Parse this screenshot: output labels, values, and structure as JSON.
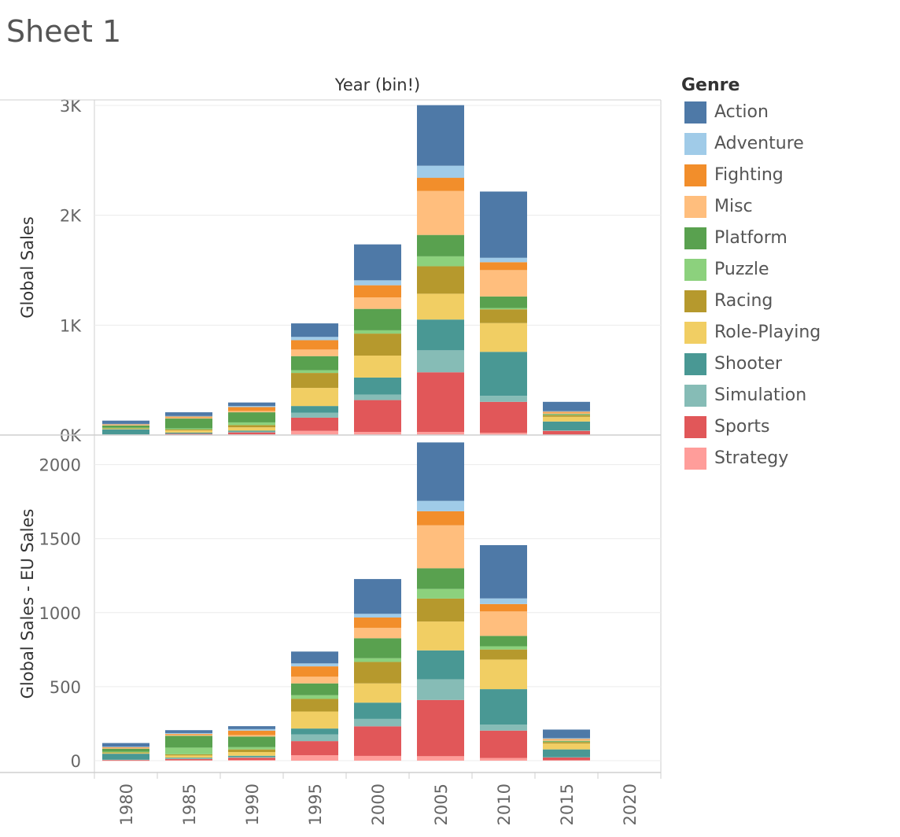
{
  "sheet": {
    "title": "Sheet 1"
  },
  "legend": {
    "title": "Genre",
    "items": [
      {
        "label": "Action",
        "color": "#4E79A7"
      },
      {
        "label": "Adventure",
        "color": "#A0CBE8"
      },
      {
        "label": "Fighting",
        "color": "#F28E2B"
      },
      {
        "label": "Misc",
        "color": "#FFBE7D"
      },
      {
        "label": "Platform",
        "color": "#59A14F"
      },
      {
        "label": "Puzzle",
        "color": "#8CD17D"
      },
      {
        "label": "Racing",
        "color": "#B6992D"
      },
      {
        "label": "Role-Playing",
        "color": "#F1CE63"
      },
      {
        "label": "Shooter",
        "color": "#499894"
      },
      {
        "label": "Simulation",
        "color": "#86BCB6"
      },
      {
        "label": "Sports",
        "color": "#E15759"
      },
      {
        "label": "Strategy",
        "color": "#FF9D9A"
      }
    ]
  },
  "chart_data": [
    {
      "type": "bar",
      "stacked": true,
      "xlabel": "Year (bin!)",
      "ylabel": "Global Sales",
      "ylim": [
        0,
        3050
      ],
      "yticks": [
        0,
        1000,
        2000,
        3000
      ],
      "ytick_labels": [
        "0K",
        "1K",
        "2K",
        "3K"
      ],
      "grid": true,
      "categories": [
        "1980",
        "1985",
        "1990",
        "1995",
        "2000",
        "2005",
        "2010",
        "2015",
        "2020"
      ],
      "series": [
        {
          "name": "Strategy",
          "values": [
            1,
            3,
            6,
            38,
            28,
            28,
            20,
            3,
            0
          ]
        },
        {
          "name": "Sports",
          "values": [
            4,
            8,
            18,
            120,
            290,
            543,
            282,
            35,
            0
          ]
        },
        {
          "name": "Simulation",
          "values": [
            2,
            3,
            6,
            46,
            50,
            200,
            55,
            5,
            0
          ]
        },
        {
          "name": "Shooter",
          "values": [
            45,
            8,
            10,
            60,
            155,
            280,
            400,
            80,
            0
          ]
        },
        {
          "name": "Role-Playing",
          "values": [
            4,
            20,
            30,
            165,
            200,
            235,
            262,
            43,
            0
          ]
        },
        {
          "name": "Racing",
          "values": [
            5,
            8,
            20,
            136,
            200,
            250,
            125,
            15,
            0
          ]
        },
        {
          "name": "Puzzle",
          "values": [
            6,
            10,
            25,
            25,
            30,
            90,
            12,
            3,
            0
          ]
        },
        {
          "name": "Platform",
          "values": [
            20,
            90,
            92,
            128,
            195,
            195,
            105,
            8,
            0
          ]
        },
        {
          "name": "Misc",
          "values": [
            5,
            10,
            12,
            60,
            105,
            400,
            240,
            12,
            0
          ]
        },
        {
          "name": "Fighting",
          "values": [
            5,
            8,
            35,
            85,
            110,
            120,
            72,
            8,
            0
          ]
        },
        {
          "name": "Adventure",
          "values": [
            4,
            5,
            10,
            30,
            45,
            110,
            40,
            5,
            0
          ]
        },
        {
          "name": "Action",
          "values": [
            30,
            34,
            32,
            123,
            327,
            551,
            603,
            85,
            0
          ]
        }
      ]
    },
    {
      "type": "bar",
      "stacked": true,
      "xlabel": "Year (bin!)",
      "ylabel": "Global Sales - EU Sales",
      "ylim": [
        -80,
        2200
      ],
      "yticks": [
        0,
        500,
        1000,
        1500,
        2000
      ],
      "ytick_labels": [
        "0",
        "500",
        "1000",
        "1500",
        "2000"
      ],
      "grid": true,
      "categories": [
        "1980",
        "1985",
        "1990",
        "1995",
        "2000",
        "2005",
        "2010",
        "2015",
        "2020"
      ],
      "series": [
        {
          "name": "Strategy",
          "values": [
            1,
            3,
            5,
            37,
            32,
            30,
            18,
            3,
            0
          ]
        },
        {
          "name": "Sports",
          "values": [
            4,
            8,
            15,
            95,
            200,
            380,
            185,
            18,
            0
          ]
        },
        {
          "name": "Simulation",
          "values": [
            2,
            3,
            5,
            45,
            50,
            140,
            40,
            3,
            0
          ]
        },
        {
          "name": "Shooter",
          "values": [
            40,
            6,
            8,
            40,
            110,
            195,
            240,
            52,
            0
          ]
        },
        {
          "name": "Role-Playing",
          "values": [
            4,
            15,
            25,
            115,
            130,
            195,
            200,
            40,
            0
          ]
        },
        {
          "name": "Racing",
          "values": [
            5,
            8,
            18,
            85,
            145,
            155,
            68,
            10,
            0
          ]
        },
        {
          "name": "Puzzle",
          "values": [
            5,
            45,
            15,
            25,
            25,
            65,
            22,
            3,
            0
          ]
        },
        {
          "name": "Platform",
          "values": [
            20,
            80,
            72,
            80,
            135,
            140,
            70,
            5,
            0
          ]
        },
        {
          "name": "Misc",
          "values": [
            5,
            8,
            10,
            45,
            70,
            290,
            165,
            8,
            0
          ]
        },
        {
          "name": "Fighting",
          "values": [
            5,
            5,
            30,
            70,
            70,
            95,
            50,
            5,
            0
          ]
        },
        {
          "name": "Adventure",
          "values": [
            3,
            5,
            10,
            20,
            25,
            70,
            38,
            5,
            0
          ]
        },
        {
          "name": "Action",
          "values": [
            25,
            20,
            20,
            80,
            235,
            395,
            360,
            58,
            0
          ]
        }
      ]
    }
  ]
}
